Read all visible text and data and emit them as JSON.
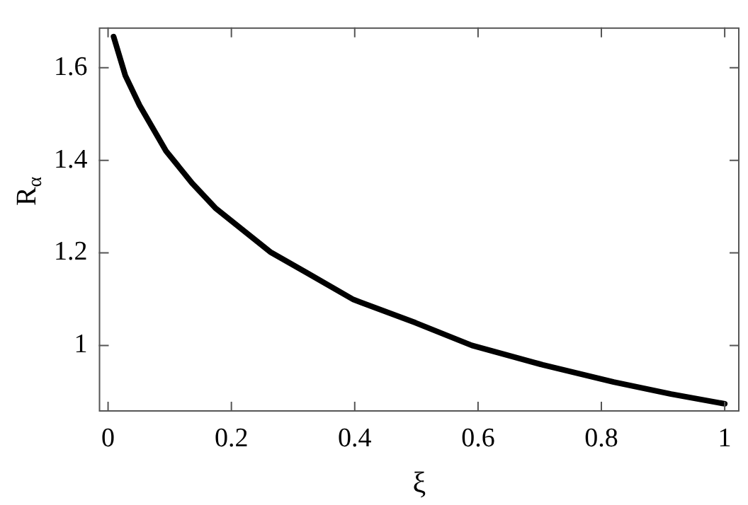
{
  "chart_data": {
    "type": "line",
    "xlabel": "ξ",
    "ylabel": "R$_{α}$",
    "xlim": [
      -0.015,
      1.024
    ],
    "ylim": [
      0.857,
      1.687
    ],
    "xticks": [
      0,
      0.2,
      0.4,
      0.6,
      0.8,
      1
    ],
    "yticks": [
      1,
      1.2,
      1.4,
      1.6
    ],
    "grid": false,
    "legend": false,
    "marker": "none",
    "line_style": "solid",
    "series": [
      {
        "color": "#000000",
        "x": [
          0.009,
          0.028,
          0.051,
          0.094,
          0.136,
          0.174,
          0.221,
          0.263,
          0.321,
          0.398,
          0.4985,
          0.59,
          0.705,
          0.82,
          0.913,
          1.0
        ],
        "values": [
          1.667,
          1.583,
          1.519,
          1.42,
          1.351,
          1.297,
          1.247,
          1.202,
          1.158,
          1.099,
          1.049,
          1.0,
          0.958,
          0.921,
          0.895,
          0.874
        ]
      }
    ]
  }
}
